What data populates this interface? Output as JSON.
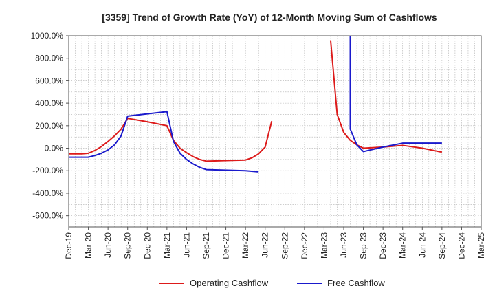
{
  "chart_data": {
    "type": "line",
    "title": "[3359]  Trend of Growth Rate (YoY) of 12-Month Moving Sum of Cashflows",
    "xlabel": "",
    "ylabel": "",
    "ylim": [
      -700,
      1000
    ],
    "yticks": [
      1000,
      800,
      600,
      400,
      200,
      0,
      -200,
      -400,
      -600
    ],
    "ytick_labels": [
      "1000.0%",
      "800.0%",
      "600.0%",
      "400.0%",
      "200.0%",
      "0.0%",
      "-200.0%",
      "-400.0%",
      "-600.0%"
    ],
    "xticks": [
      "Dec-19",
      "Mar-20",
      "Jun-20",
      "Sep-20",
      "Dec-20",
      "Mar-21",
      "Jun-21",
      "Sep-21",
      "Dec-21",
      "Mar-22",
      "Jun-22",
      "Sep-22",
      "Dec-22",
      "Mar-23",
      "Jun-23",
      "Sep-23",
      "Dec-23",
      "Mar-24",
      "Jun-24",
      "Sep-24",
      "Dec-24",
      "Mar-25"
    ],
    "x_range": [
      "2019-12",
      "2025-03"
    ],
    "grid": true,
    "legend_position": "bottom",
    "series": [
      {
        "name": "Operating Cashflow",
        "color": "#dd1a1a",
        "points": [
          [
            "2019-12",
            -50
          ],
          [
            "2020-01",
            -50
          ],
          [
            "2020-02",
            -50
          ],
          [
            "2020-03",
            -45
          ],
          [
            "2020-04",
            -20
          ],
          [
            "2020-05",
            15
          ],
          [
            "2020-06",
            60
          ],
          [
            "2020-07",
            110
          ],
          [
            "2020-08",
            170
          ],
          [
            "2020-09",
            265
          ],
          [
            "2020-12",
            235
          ],
          [
            "2021-03",
            200
          ],
          [
            "2021-04",
            70
          ],
          [
            "2021-05",
            0
          ],
          [
            "2021-06",
            -40
          ],
          [
            "2021-07",
            -75
          ],
          [
            "2021-08",
            -100
          ],
          [
            "2021-09",
            -115
          ],
          [
            "2021-12",
            -110
          ],
          [
            "2022-03",
            -105
          ],
          [
            "2022-04",
            -85
          ],
          [
            "2022-05",
            -50
          ],
          [
            "2022-06",
            10
          ],
          [
            "2022-07",
            240
          ],
          null,
          [
            "2023-04",
            960
          ],
          [
            "2023-05",
            300
          ],
          [
            "2023-06",
            140
          ],
          [
            "2023-07",
            70
          ],
          [
            "2023-08",
            30
          ],
          [
            "2023-09",
            0
          ],
          [
            "2023-12",
            10
          ],
          [
            "2024-03",
            25
          ],
          [
            "2024-06",
            0
          ],
          [
            "2024-09",
            -35
          ]
        ]
      },
      {
        "name": "Free Cashflow",
        "color": "#1a1acc",
        "points": [
          [
            "2019-12",
            -80
          ],
          [
            "2020-01",
            -80
          ],
          [
            "2020-02",
            -80
          ],
          [
            "2020-03",
            -80
          ],
          [
            "2020-04",
            -65
          ],
          [
            "2020-05",
            -45
          ],
          [
            "2020-06",
            -15
          ],
          [
            "2020-07",
            30
          ],
          [
            "2020-08",
            110
          ],
          [
            "2020-09",
            285
          ],
          [
            "2021-03",
            325
          ],
          [
            "2021-04",
            60
          ],
          [
            "2021-05",
            -45
          ],
          [
            "2021-06",
            -100
          ],
          [
            "2021-07",
            -140
          ],
          [
            "2021-08",
            -170
          ],
          [
            "2021-09",
            -190
          ],
          [
            "2022-03",
            -200
          ],
          [
            "2022-05",
            -210
          ],
          null,
          [
            "2023-07",
            1000
          ],
          [
            "2023-07",
            170
          ],
          [
            "2023-08",
            30
          ],
          [
            "2023-09",
            -30
          ],
          [
            "2023-12",
            10
          ],
          [
            "2024-03",
            45
          ],
          [
            "2024-06",
            45
          ],
          [
            "2024-09",
            45
          ]
        ]
      }
    ]
  }
}
